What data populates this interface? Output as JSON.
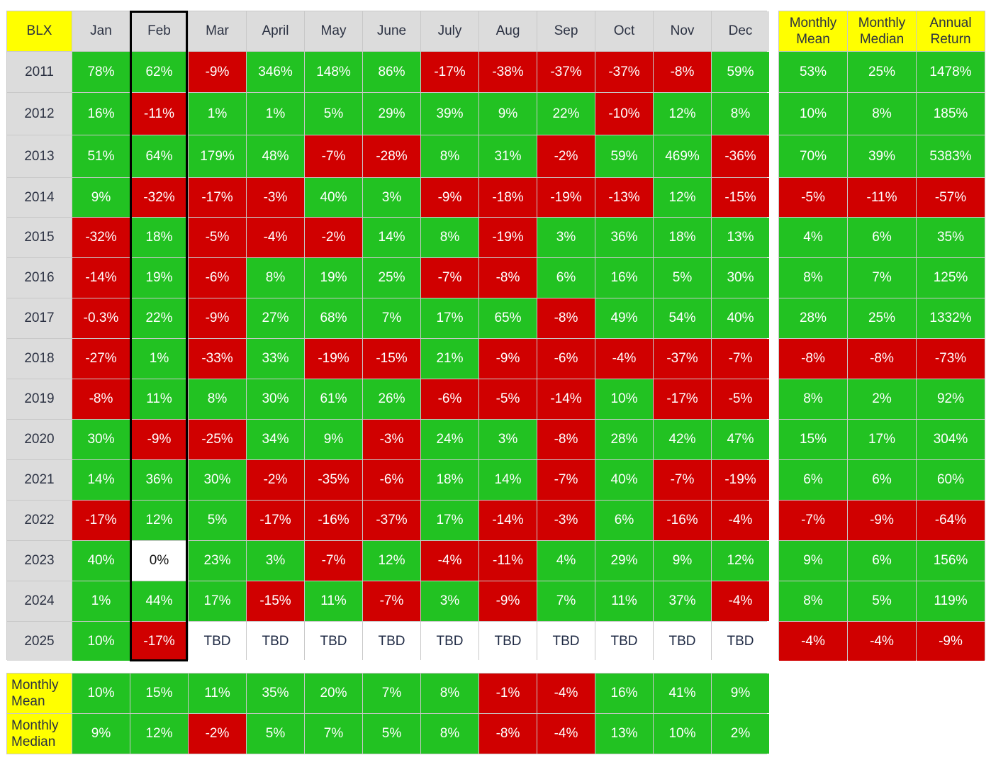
{
  "colors": {
    "positive": "#22c222",
    "negative": "#d00000",
    "header": "#dcdcdc",
    "highlight_header": "#ffff00",
    "neutral": "#ffffff"
  },
  "chart_data": {
    "type": "table",
    "corner_label": "BLX",
    "columns": [
      "Jan",
      "Feb",
      "Mar",
      "April",
      "May",
      "June",
      "July",
      "Aug",
      "Sep",
      "Oct",
      "Nov",
      "Dec"
    ],
    "highlighted_column": "Feb",
    "summary_columns": [
      "Monthly Mean",
      "Monthly Median",
      "Annual Return"
    ],
    "rows": [
      {
        "year": "2011",
        "months": [
          "78%",
          "62%",
          "-9%",
          "346%",
          "148%",
          "86%",
          "-17%",
          "-38%",
          "-37%",
          "-37%",
          "-8%",
          "59%"
        ],
        "summary": [
          "53%",
          "25%",
          "1478%"
        ]
      },
      {
        "year": "2012",
        "months": [
          "16%",
          "-11%",
          "1%",
          "1%",
          "5%",
          "29%",
          "39%",
          "9%",
          "22%",
          "-10%",
          "12%",
          "8%"
        ],
        "summary": [
          "10%",
          "8%",
          "185%"
        ]
      },
      {
        "year": "2013",
        "months": [
          "51%",
          "64%",
          "179%",
          "48%",
          "-7%",
          "-28%",
          "8%",
          "31%",
          "-2%",
          "59%",
          "469%",
          "-36%"
        ],
        "summary": [
          "70%",
          "39%",
          "5383%"
        ]
      },
      {
        "year": "2014",
        "months": [
          "9%",
          "-32%",
          "-17%",
          "-3%",
          "40%",
          "3%",
          "-9%",
          "-18%",
          "-19%",
          "-13%",
          "12%",
          "-15%"
        ],
        "summary": [
          "-5%",
          "-11%",
          "-57%"
        ]
      },
      {
        "year": "2015",
        "months": [
          "-32%",
          "18%",
          "-5%",
          "-4%",
          "-2%",
          "14%",
          "8%",
          "-19%",
          "3%",
          "36%",
          "18%",
          "13%"
        ],
        "summary": [
          "4%",
          "6%",
          "35%"
        ]
      },
      {
        "year": "2016",
        "months": [
          "-14%",
          "19%",
          "-6%",
          "8%",
          "19%",
          "25%",
          "-7%",
          "-8%",
          "6%",
          "16%",
          "5%",
          "30%"
        ],
        "summary": [
          "8%",
          "7%",
          "125%"
        ]
      },
      {
        "year": "2017",
        "months": [
          "-0.3%",
          "22%",
          "-9%",
          "27%",
          "68%",
          "7%",
          "17%",
          "65%",
          "-8%",
          "49%",
          "54%",
          "40%"
        ],
        "summary": [
          "28%",
          "25%",
          "1332%"
        ]
      },
      {
        "year": "2018",
        "months": [
          "-27%",
          "1%",
          "-33%",
          "33%",
          "-19%",
          "-15%",
          "21%",
          "-9%",
          "-6%",
          "-4%",
          "-37%",
          "-7%"
        ],
        "summary": [
          "-8%",
          "-8%",
          "-73%"
        ]
      },
      {
        "year": "2019",
        "months": [
          "-8%",
          "11%",
          "8%",
          "30%",
          "61%",
          "26%",
          "-6%",
          "-5%",
          "-14%",
          "10%",
          "-17%",
          "-5%"
        ],
        "summary": [
          "8%",
          "2%",
          "92%"
        ]
      },
      {
        "year": "2020",
        "months": [
          "30%",
          "-9%",
          "-25%",
          "34%",
          "9%",
          "-3%",
          "24%",
          "3%",
          "-8%",
          "28%",
          "42%",
          "47%"
        ],
        "summary": [
          "15%",
          "17%",
          "304%"
        ]
      },
      {
        "year": "2021",
        "months": [
          "14%",
          "36%",
          "30%",
          "-2%",
          "-35%",
          "-6%",
          "18%",
          "14%",
          "-7%",
          "40%",
          "-7%",
          "-19%"
        ],
        "summary": [
          "6%",
          "6%",
          "60%"
        ]
      },
      {
        "year": "2022",
        "months": [
          "-17%",
          "12%",
          "5%",
          "-17%",
          "-16%",
          "-37%",
          "17%",
          "-14%",
          "-3%",
          "6%",
          "-16%",
          "-4%"
        ],
        "summary": [
          "-7%",
          "-9%",
          "-64%"
        ]
      },
      {
        "year": "2023",
        "months": [
          "40%",
          "0%",
          "23%",
          "3%",
          "-7%",
          "12%",
          "-4%",
          "-11%",
          "4%",
          "29%",
          "9%",
          "12%"
        ],
        "summary": [
          "9%",
          "6%",
          "156%"
        ]
      },
      {
        "year": "2024",
        "months": [
          "1%",
          "44%",
          "17%",
          "-15%",
          "11%",
          "-7%",
          "3%",
          "-9%",
          "7%",
          "11%",
          "37%",
          "-4%"
        ],
        "summary": [
          "8%",
          "5%",
          "119%"
        ]
      },
      {
        "year": "2025",
        "months": [
          "10%",
          "-17%",
          "TBD",
          "TBD",
          "TBD",
          "TBD",
          "TBD",
          "TBD",
          "TBD",
          "TBD",
          "TBD",
          "TBD"
        ],
        "summary": [
          "-4%",
          "-4%",
          "-9%"
        ]
      }
    ],
    "footer_rows": [
      {
        "label": "Monthly Mean",
        "values": [
          "10%",
          "15%",
          "11%",
          "35%",
          "20%",
          "7%",
          "8%",
          "-1%",
          "-4%",
          "16%",
          "41%",
          "9%"
        ]
      },
      {
        "label": "Monthly Median",
        "values": [
          "9%",
          "12%",
          "-2%",
          "5%",
          "7%",
          "5%",
          "8%",
          "-8%",
          "-4%",
          "13%",
          "10%",
          "2%"
        ]
      }
    ]
  }
}
